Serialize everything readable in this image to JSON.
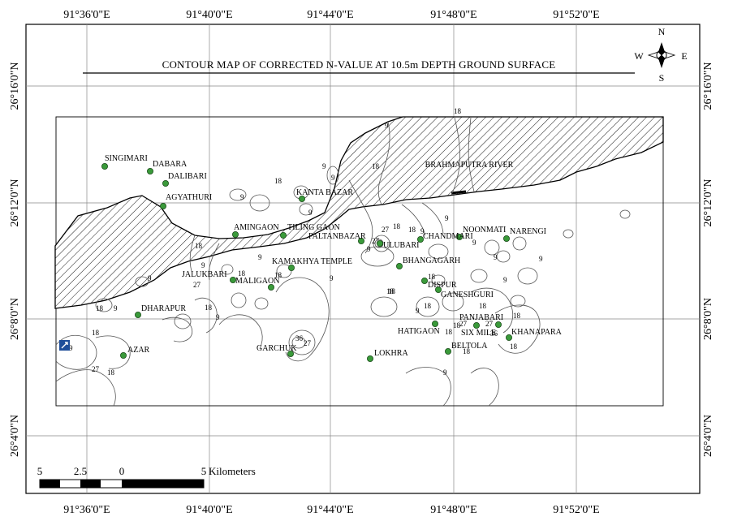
{
  "title": "CONTOUR MAP OF CORRECTED N-VALUE AT 10.5m DEPTH GROUND SURFACE",
  "longitude_ticks": [
    "91°36'0\"E",
    "91°40'0\"E",
    "91°44'0\"E",
    "91°48'0\"E",
    "91°52'0\"E"
  ],
  "latitude_ticks": [
    "26°16'0\"N",
    "26°12'0\"N",
    "26°8'0\"N",
    "26°4'0\"N"
  ],
  "compass": {
    "n": "N",
    "s": "S",
    "e": "E",
    "w": "W"
  },
  "river_label": "BRAHMAPUTRA RIVER",
  "scale_bar": {
    "labels": [
      "5",
      "2.5",
      "0",
      "5"
    ],
    "unit": "Kilometers"
  },
  "places": [
    {
      "name": "SINGIMARI"
    },
    {
      "name": "DABARA"
    },
    {
      "name": "DALIBARI"
    },
    {
      "name": "AGYATHURI"
    },
    {
      "name": "KANTA BAZAR"
    },
    {
      "name": "AMINGAON"
    },
    {
      "name": "TILING GAON"
    },
    {
      "name": "PALTANBAZAR"
    },
    {
      "name": "ULUBARI"
    },
    {
      "name": "CHANDMARI"
    },
    {
      "name": "NOONMATI"
    },
    {
      "name": "NARENGI"
    },
    {
      "name": "KAMAKHYA TEMPLE"
    },
    {
      "name": "BHANGAGARH"
    },
    {
      "name": "JALUKBARI"
    },
    {
      "name": "MALIGAON"
    },
    {
      "name": "DISPUR"
    },
    {
      "name": "GANESHGURI"
    },
    {
      "name": "DHARAPUR"
    },
    {
      "name": "PANJABARI"
    },
    {
      "name": "HATIGAON"
    },
    {
      "name": "SIX MILE"
    },
    {
      "name": "KHANAPARA"
    },
    {
      "name": "BELTOLA"
    },
    {
      "name": "GARCHUK"
    },
    {
      "name": "LOKHRA"
    },
    {
      "name": "AZAR"
    }
  ],
  "contour_labels": [
    "18",
    "9",
    "9",
    "18",
    "9",
    "18",
    "9",
    "9",
    "18",
    "18",
    "9",
    "27",
    "9",
    "18",
    "9",
    "9",
    "18",
    "9",
    "18",
    "9",
    "27",
    "18",
    "18",
    "9",
    "36",
    "27",
    "18",
    "18",
    "18",
    "18",
    "27",
    "9",
    "9",
    "18",
    "9",
    "18",
    "9",
    "18",
    "9",
    "9",
    "27",
    "18",
    "9",
    "18",
    "27",
    "36",
    "9",
    "18",
    "18",
    "27",
    "9",
    "18"
  ]
}
